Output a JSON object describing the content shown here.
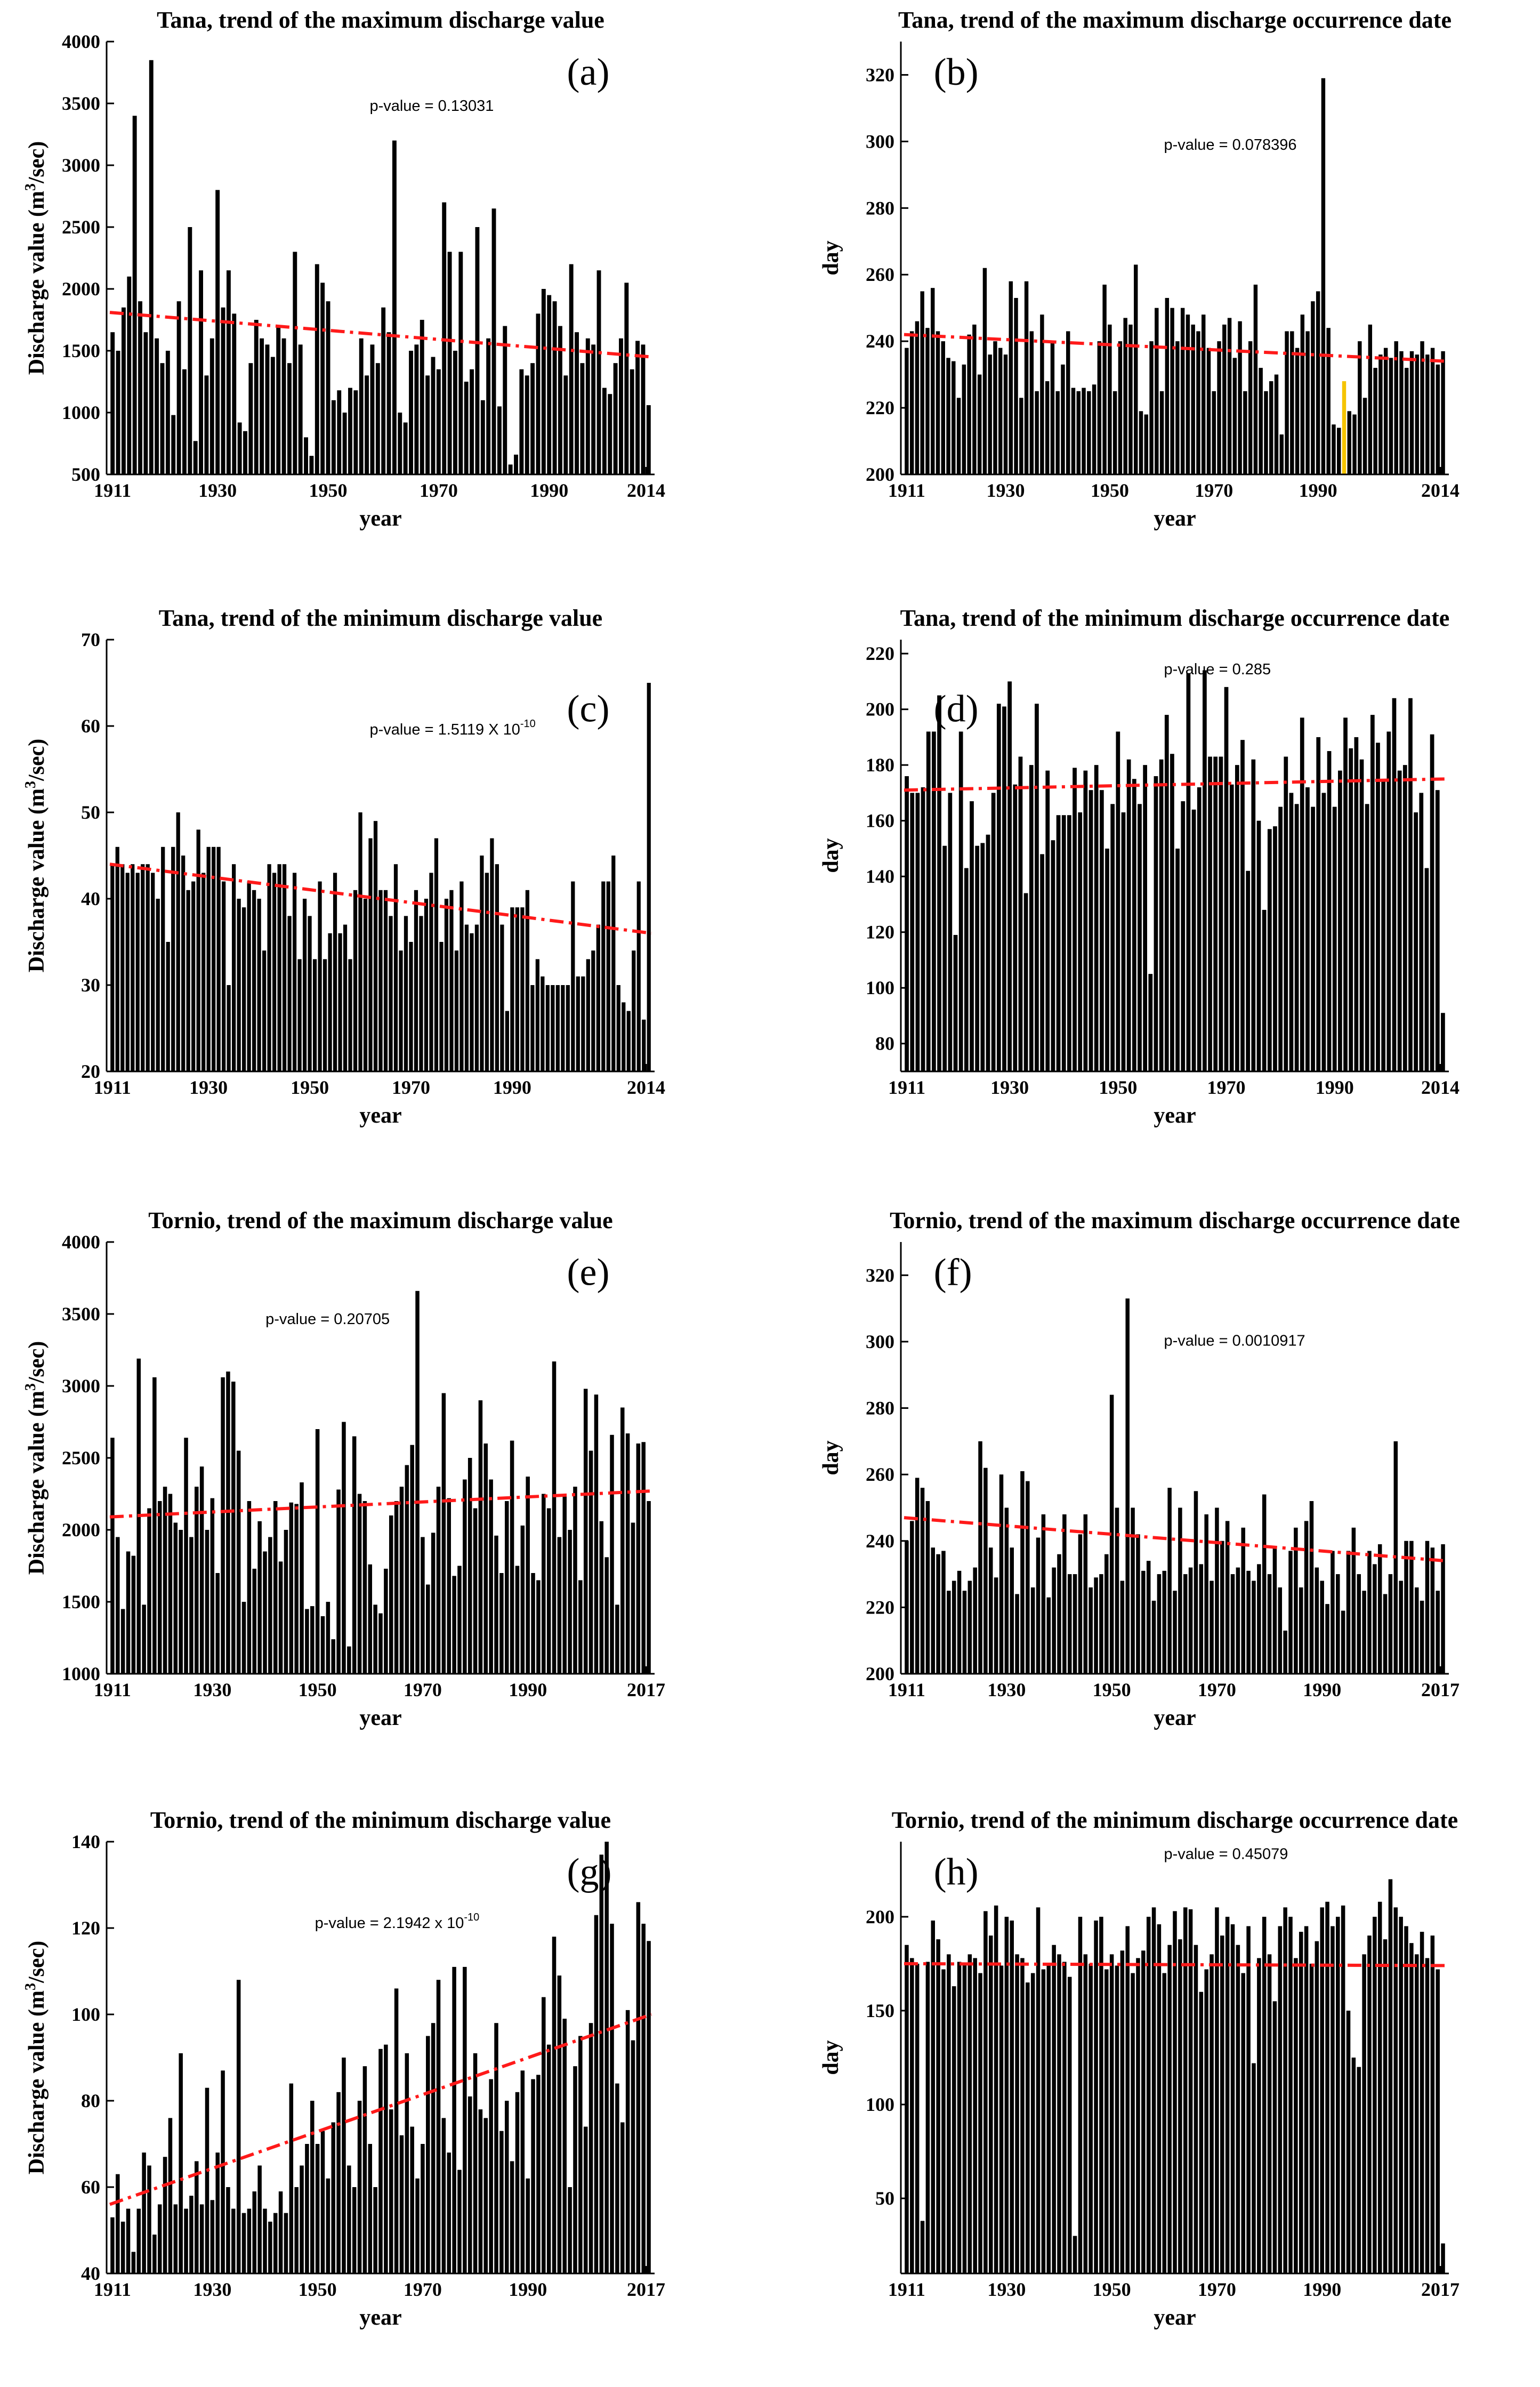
{
  "figure": "Tana and Tornio discharge trend panels",
  "chart_data": [
    {
      "id": "a",
      "type": "bar",
      "title": "Tana, trend of the maximum discharge value",
      "panel_label": "(a)",
      "pvalue": {
        "prefix": "p-value = 0.13031",
        "exponent": ""
      },
      "xlabel": "year",
      "ylabel": "Discharge value (m³/sec)",
      "ylabel_main": "Discharge value (m",
      "ylabel_sup": "3",
      "ylabel_tail": "/sec)",
      "x_start": 1911,
      "x_end": 2014,
      "xticks": [
        1911,
        1930,
        1950,
        1970,
        1990,
        2014
      ],
      "ylim": [
        500,
        4000
      ],
      "yticks": [
        500,
        1000,
        1500,
        2000,
        2500,
        3000,
        3500,
        4000
      ],
      "trend": {
        "start": 1810,
        "end": 1450
      },
      "values": [
        1650,
        1500,
        1850,
        2100,
        3400,
        1900,
        1650,
        3850,
        1600,
        1400,
        1500,
        980,
        1900,
        1350,
        2500,
        770,
        2150,
        1300,
        1600,
        2800,
        1850,
        2150,
        1800,
        920,
        850,
        1400,
        1750,
        1600,
        1550,
        1450,
        1700,
        1600,
        1400,
        2300,
        1550,
        800,
        650,
        2200,
        2050,
        1900,
        1100,
        1180,
        1000,
        1200,
        1180,
        1600,
        1300,
        1550,
        1400,
        1850,
        1650,
        3200,
        1000,
        920,
        1500,
        1550,
        1750,
        1300,
        1450,
        1350,
        2700,
        2300,
        1500,
        2300,
        1250,
        1350,
        2500,
        1100,
        1600,
        2650,
        1050,
        1700,
        580,
        660,
        1350,
        1300,
        1400,
        1800,
        2000,
        1950,
        1900,
        1700,
        1300,
        2200,
        1650,
        1400,
        1600,
        1550,
        2150,
        1200,
        1150,
        1400,
        1600,
        2050,
        1350,
        1580,
        1550,
        1060
      ]
    },
    {
      "id": "b",
      "type": "bar",
      "title": "Tana, trend of the maximum discharge occurrence date",
      "panel_label": "(b)",
      "pvalue": {
        "prefix": "p-value = 0.078396",
        "exponent": ""
      },
      "xlabel": "year",
      "ylabel": "day",
      "x_start": 1911,
      "x_end": 2014,
      "xticks": [
        1911,
        1930,
        1950,
        1970,
        1990,
        2014
      ],
      "ylim": [
        200,
        330
      ],
      "yticks": [
        200,
        220,
        240,
        260,
        280,
        300,
        320
      ],
      "trend": {
        "start": 242,
        "end": 234
      },
      "highlight_year": 1995,
      "highlight_color": "#f5c400",
      "values": [
        238,
        243,
        246,
        255,
        244,
        256,
        243,
        240,
        235,
        234,
        223,
        233,
        242,
        245,
        230,
        262,
        236,
        240,
        238,
        236,
        258,
        253,
        223,
        258,
        243,
        225,
        248,
        228,
        240,
        225,
        233,
        243,
        226,
        225,
        226,
        225,
        227,
        240,
        257,
        245,
        225,
        240,
        247,
        245,
        263,
        219,
        218,
        240,
        250,
        225,
        253,
        250,
        240,
        250,
        248,
        245,
        243,
        248,
        238,
        225,
        240,
        245,
        247,
        235,
        246,
        225,
        240,
        257,
        232,
        225,
        228,
        230,
        212,
        243,
        243,
        238,
        248,
        243,
        252,
        255,
        319,
        244,
        215,
        214,
        228,
        219,
        218,
        240,
        223,
        245,
        232,
        236,
        238,
        235,
        240,
        237,
        232,
        237,
        236,
        240,
        236,
        238,
        233,
        237
      ]
    },
    {
      "id": "c",
      "type": "bar",
      "title": "Tana, trend of the minimum discharge value",
      "panel_label": "(c)",
      "pvalue": {
        "prefix": "p-value = 1.5119 X 10",
        "exponent": "-10"
      },
      "xlabel": "year",
      "ylabel": "Discharge value (m³/sec)",
      "ylabel_main": "Discharge value (m",
      "ylabel_sup": "3",
      "ylabel_tail": "/sec)",
      "x_start": 1911,
      "x_end": 2014,
      "xticks": [
        1911,
        1930,
        1950,
        1970,
        1990,
        2014
      ],
      "ylim": [
        20,
        70
      ],
      "yticks": [
        20,
        30,
        40,
        50,
        60,
        70
      ],
      "trend": {
        "start": 44,
        "end": 36
      },
      "values": [
        44,
        46,
        44,
        43,
        44,
        43,
        44,
        44,
        43,
        40,
        46,
        35,
        46,
        50,
        45,
        41,
        42,
        48,
        43,
        46,
        46,
        46,
        42,
        30,
        44,
        40,
        39,
        42,
        41,
        40,
        34,
        44,
        43,
        44,
        44,
        38,
        43,
        33,
        40,
        38,
        33,
        42,
        33,
        36,
        43,
        36,
        37,
        33,
        41,
        50,
        40,
        47,
        49,
        41,
        41,
        38,
        44,
        34,
        38,
        35,
        41,
        38,
        40,
        43,
        47,
        35,
        40,
        41,
        34,
        42,
        37,
        36,
        37,
        45,
        43,
        47,
        44,
        37,
        27,
        39,
        39,
        39,
        41,
        30,
        33,
        31,
        30,
        30,
        30,
        30,
        30,
        42,
        31,
        31,
        33,
        34,
        37,
        42,
        42,
        45,
        30,
        28,
        27,
        34,
        42,
        26,
        65
      ]
    },
    {
      "id": "d",
      "type": "bar",
      "title": "Tana, trend of the minimum discharge occurrence date",
      "panel_label": "(d)",
      "pvalue": {
        "prefix": "p-value = 0.285",
        "exponent": ""
      },
      "xlabel": "year",
      "ylabel": "day",
      "x_start": 1911,
      "x_end": 2014,
      "xticks": [
        1911,
        1930,
        1950,
        1970,
        1990,
        2014
      ],
      "ylim": [
        70,
        225
      ],
      "yticks": [
        80,
        100,
        120,
        140,
        160,
        180,
        200,
        220
      ],
      "trend": {
        "start": 171,
        "end": 175
      },
      "values": [
        176,
        170,
        170,
        172,
        192,
        192,
        205,
        151,
        170,
        119,
        192,
        143,
        167,
        151,
        152,
        155,
        170,
        202,
        201,
        210,
        173,
        183,
        134,
        180,
        202,
        148,
        178,
        153,
        162,
        162,
        162,
        179,
        163,
        178,
        171,
        180,
        171,
        150,
        166,
        192,
        163,
        182,
        175,
        166,
        180,
        105,
        176,
        182,
        198,
        184,
        150,
        167,
        213,
        164,
        172,
        214,
        183,
        183,
        183,
        208,
        173,
        180,
        189,
        142,
        182,
        160,
        128,
        157,
        158,
        165,
        183,
        170,
        166,
        197,
        172,
        165,
        190,
        170,
        185,
        165,
        178,
        197,
        186,
        190,
        182,
        166,
        198,
        188,
        175,
        192,
        204,
        178,
        180,
        204,
        163,
        170,
        143,
        191,
        171,
        91
      ]
    },
    {
      "id": "e",
      "type": "bar",
      "title": "Tornio, trend of the maximum discharge value",
      "panel_label": "(e)",
      "pvalue": {
        "prefix": "p-value = 0.20705",
        "exponent": ""
      },
      "xlabel": "year",
      "ylabel": "Discharge value (m³/sec)",
      "ylabel_main": "Discharge value (m",
      "ylabel_sup": "3",
      "ylabel_tail": "/sec)",
      "x_start": 1911,
      "x_end": 2017,
      "xticks": [
        1911,
        1930,
        1950,
        1970,
        1990,
        2017
      ],
      "ylim": [
        1000,
        4000
      ],
      "yticks": [
        1000,
        1500,
        2000,
        2500,
        3000,
        3500,
        4000
      ],
      "trend": {
        "start": 2090,
        "end": 2270
      },
      "values": [
        2640,
        1950,
        1450,
        1850,
        1820,
        3190,
        1480,
        2150,
        3060,
        2200,
        2300,
        2250,
        2050,
        2000,
        2640,
        1950,
        2300,
        2440,
        2000,
        2220,
        1700,
        3060,
        3100,
        3030,
        2550,
        1500,
        2200,
        1730,
        2060,
        1850,
        1950,
        2200,
        1780,
        2000,
        2190,
        2180,
        2330,
        1450,
        1470,
        2700,
        1400,
        1500,
        1240,
        2280,
        2750,
        1190,
        2650,
        2250,
        2200,
        1760,
        1480,
        1420,
        1730,
        2100,
        2200,
        2300,
        2450,
        2590,
        3660,
        1950,
        1620,
        1980,
        2300,
        2950,
        2220,
        1680,
        1750,
        2350,
        2500,
        2150,
        2900,
        2600,
        2350,
        1960,
        1700,
        2200,
        2620,
        1750,
        2030,
        2370,
        1700,
        1650,
        2250,
        2150,
        3170,
        1950,
        2250,
        2000,
        2300,
        1650,
        2980,
        2550,
        2940,
        2060,
        1810,
        2660,
        1480,
        2850,
        2670,
        2050,
        2600,
        2610,
        2200
      ]
    },
    {
      "id": "f",
      "type": "bar",
      "title": "Tornio, trend of the maximum discharge occurrence date",
      "panel_label": "(f)",
      "pvalue": {
        "prefix": "p-value = 0.0010917",
        "exponent": ""
      },
      "xlabel": "year",
      "ylabel": "day",
      "x_start": 1911,
      "x_end": 2017,
      "xticks": [
        1911,
        1930,
        1950,
        1970,
        1990,
        2017
      ],
      "ylim": [
        200,
        330
      ],
      "yticks": [
        200,
        220,
        240,
        260,
        280,
        300,
        320
      ],
      "trend": {
        "start": 247,
        "end": 234
      },
      "values": [
        240,
        246,
        259,
        256,
        252,
        238,
        236,
        237,
        225,
        228,
        231,
        225,
        228,
        232,
        270,
        262,
        238,
        229,
        260,
        250,
        238,
        224,
        261,
        258,
        226,
        241,
        248,
        223,
        232,
        236,
        248,
        230,
        230,
        242,
        248,
        226,
        229,
        230,
        236,
        284,
        250,
        228,
        313,
        250,
        242,
        231,
        234,
        222,
        230,
        231,
        256,
        225,
        250,
        230,
        232,
        255,
        233,
        248,
        228,
        250,
        240,
        246,
        230,
        232,
        244,
        231,
        228,
        233,
        254,
        230,
        238,
        226,
        213,
        237,
        244,
        226,
        246,
        252,
        232,
        228,
        221,
        237,
        230,
        219,
        237,
        244,
        230,
        225,
        237,
        233,
        239,
        224,
        230,
        270,
        228,
        240,
        240,
        226,
        222,
        240,
        238,
        225,
        239
      ]
    },
    {
      "id": "g",
      "type": "bar",
      "title": "Tornio, trend of the minimum discharge value",
      "panel_label": "(g)",
      "pvalue": {
        "prefix": "p-value = 2.1942 x 10",
        "exponent": "-10"
      },
      "xlabel": "year",
      "ylabel": "Discharge value (m³/sec)",
      "ylabel_main": "Discharge value (m",
      "ylabel_sup": "3",
      "ylabel_tail": "/sec)",
      "x_start": 1911,
      "x_end": 2017,
      "xticks": [
        1911,
        1930,
        1950,
        1970,
        1990,
        2017
      ],
      "ylim": [
        40,
        140
      ],
      "yticks": [
        40,
        60,
        80,
        100,
        120,
        140
      ],
      "trend": {
        "start": 56,
        "end": 100
      },
      "values": [
        53,
        63,
        52,
        55,
        45,
        55,
        68,
        65,
        49,
        56,
        67,
        76,
        56,
        91,
        55,
        58,
        66,
        56,
        83,
        57,
        68,
        87,
        60,
        55,
        108,
        54,
        55,
        59,
        65,
        55,
        52,
        54,
        59,
        54,
        84,
        60,
        65,
        70,
        80,
        70,
        73,
        62,
        75,
        82,
        90,
        65,
        60,
        80,
        88,
        70,
        60,
        92,
        93,
        78,
        106,
        72,
        91,
        74,
        62,
        70,
        95,
        98,
        108,
        76,
        68,
        111,
        64,
        111,
        81,
        91,
        78,
        76,
        85,
        98,
        73,
        80,
        66,
        82,
        87,
        62,
        85,
        86,
        104,
        93,
        118,
        109,
        99,
        60,
        88,
        95,
        74,
        98,
        123,
        137,
        140,
        121,
        84,
        75,
        101,
        94,
        126,
        121,
        117
      ]
    },
    {
      "id": "h",
      "type": "bar",
      "title": "Tornio, trend of the minimum discharge occurrence date",
      "panel_label": "(h)",
      "pvalue": {
        "prefix": "p-value = 0.45079",
        "exponent": ""
      },
      "xlabel": "year",
      "ylabel": "day",
      "x_start": 1911,
      "x_end": 2017,
      "xticks": [
        1911,
        1930,
        1950,
        1970,
        1990,
        2017
      ],
      "ylim": [
        10,
        240
      ],
      "yticks": [
        50,
        100,
        150,
        200
      ],
      "trend": {
        "start": 175,
        "end": 174
      },
      "values": [
        185,
        178,
        175,
        38,
        176,
        198,
        188,
        172,
        180,
        163,
        176,
        175,
        180,
        178,
        170,
        203,
        190,
        206,
        174,
        200,
        198,
        180,
        178,
        165,
        170,
        205,
        172,
        175,
        185,
        180,
        176,
        168,
        30,
        200,
        180,
        175,
        198,
        200,
        172,
        180,
        174,
        182,
        195,
        170,
        178,
        182,
        200,
        205,
        196,
        170,
        185,
        203,
        188,
        205,
        204,
        185,
        160,
        172,
        180,
        205,
        190,
        200,
        196,
        185,
        170,
        195,
        122,
        178,
        200,
        180,
        155,
        195,
        205,
        200,
        178,
        192,
        195,
        175,
        187,
        205,
        208,
        195,
        200,
        206,
        150,
        125,
        120,
        180,
        190,
        200,
        208,
        188,
        220,
        205,
        200,
        195,
        186,
        180,
        192,
        178,
        190,
        172,
        26
      ]
    }
  ]
}
